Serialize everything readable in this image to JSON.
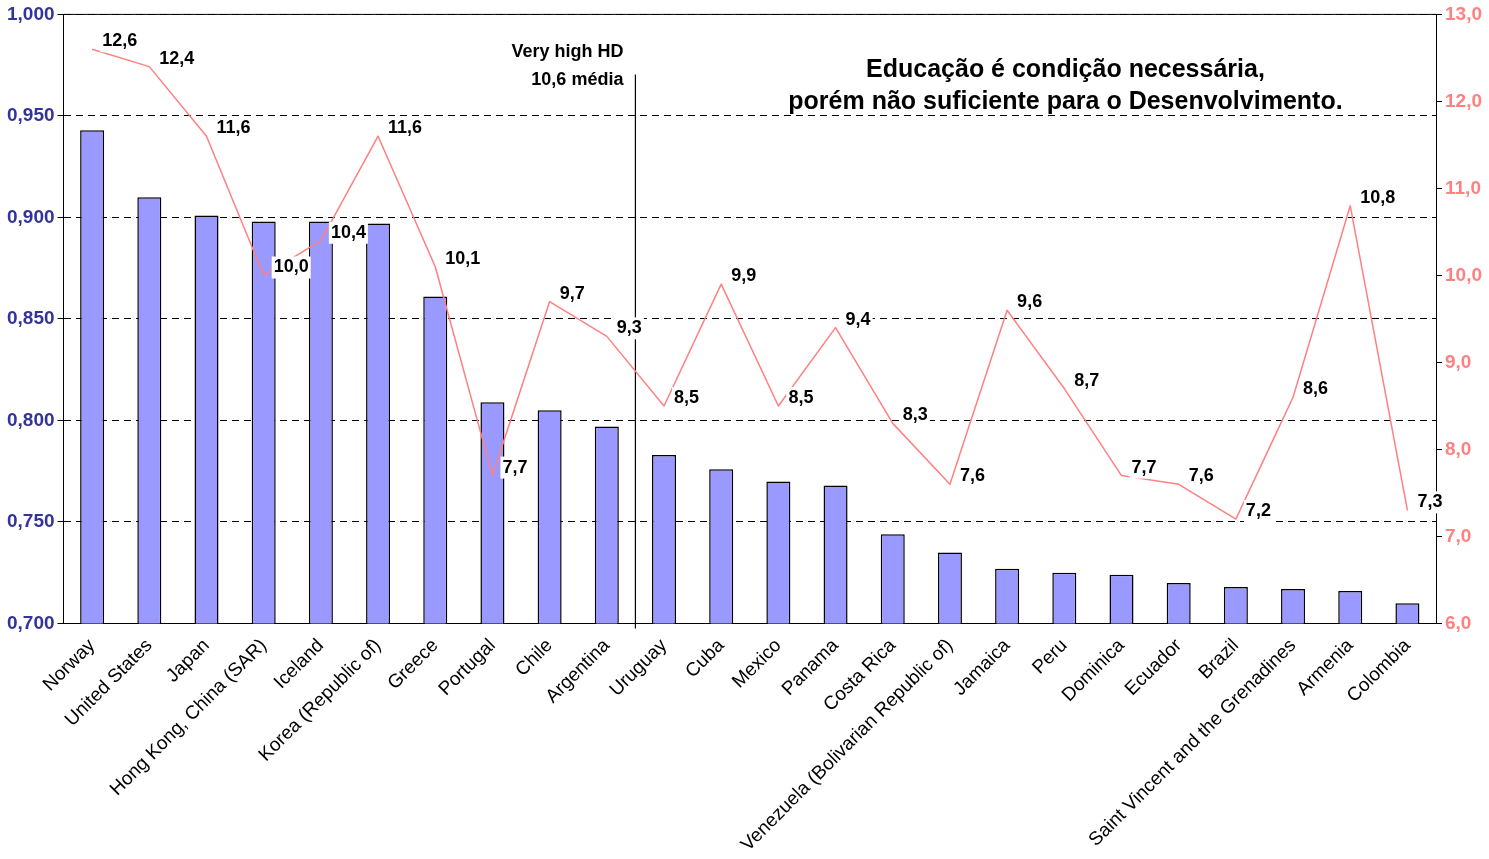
{
  "chart_data": {
    "type": "bar",
    "categories": [
      "Norway",
      "United States",
      "Japan",
      "Hong Kong, China (SAR)",
      "Iceland",
      "Korea (Republic of)",
      "Greece",
      "Portugal",
      "Chile",
      "Argentina",
      "Uruguay",
      "Cuba",
      "Mexico",
      "Panama",
      "Costa Rica",
      "Venezuela (Bolivarian Republic of)",
      "Jamaica",
      "Peru",
      "Dominica",
      "Ecuador",
      "Brazil",
      "Saint Vincent and the Grenadines",
      "Armenia",
      "Colombia"
    ],
    "series": [
      {
        "color": "#9999ff",
        "values": [
          0.943,
          0.91,
          0.901,
          0.898,
          0.898,
          0.897,
          0.861,
          0.809,
          0.805,
          0.797,
          0.783,
          0.776,
          0.77,
          0.768,
          0.744,
          0.735,
          0.727,
          0.725,
          0.724,
          0.72,
          0.718,
          0.717,
          0.716,
          0.71
        ]
      },
      {
        "type": "line",
        "axis": "y2",
        "color": "#ff8080",
        "marker": "none",
        "values": [
          12.6,
          12.4,
          11.6,
          10.0,
          10.4,
          11.6,
          10.1,
          7.7,
          9.7,
          9.3,
          8.5,
          9.9,
          8.5,
          9.4,
          8.3,
          7.6,
          9.6,
          8.7,
          7.7,
          7.6,
          7.2,
          8.6,
          10.8,
          7.3
        ],
        "value_labels": [
          "12,6",
          "12,4",
          "11,6",
          "10,0",
          "10,4",
          "11,6",
          "10,1",
          "7,7",
          "9,7",
          "9,3",
          "8,5",
          "9,9",
          "8,5",
          "9,4",
          "8,3",
          "7,6",
          "9,6",
          "8,7",
          "7,7",
          "7,6",
          "7,2",
          "8,6",
          "10,8",
          "7,3"
        ]
      }
    ],
    "ylim": [
      0.7,
      1.0
    ],
    "yticks": [
      {
        "value": 0.7,
        "label": "0,700"
      },
      {
        "value": 0.75,
        "label": "0,750"
      },
      {
        "value": 0.8,
        "label": "0,800"
      },
      {
        "value": 0.85,
        "label": "0,850"
      },
      {
        "value": 0.9,
        "label": "0,900"
      },
      {
        "value": 0.95,
        "label": "0,950"
      },
      {
        "value": 1.0,
        "label": "1,000"
      }
    ],
    "y2lim": [
      6,
      13
    ],
    "y2ticks": [
      {
        "value": 6,
        "label": "6,0"
      },
      {
        "value": 7,
        "label": "7,0"
      },
      {
        "value": 8,
        "label": "8,0"
      },
      {
        "value": 9,
        "label": "9,0"
      },
      {
        "value": 10,
        "label": "10,0"
      },
      {
        "value": 11,
        "label": "11,0"
      },
      {
        "value": 12,
        "label": "12,0"
      },
      {
        "value": 13,
        "label": "13,0"
      }
    ],
    "grid": "y",
    "legend": false,
    "ref_lines": [
      {
        "axis": "x",
        "value": "Uruguay",
        "label": "Very high HD\n10,6 média",
        "color": "#000000"
      }
    ],
    "annotations": [
      "Educação é condição necessária,\nporém não suficiente para o Desenvolvimento."
    ]
  }
}
